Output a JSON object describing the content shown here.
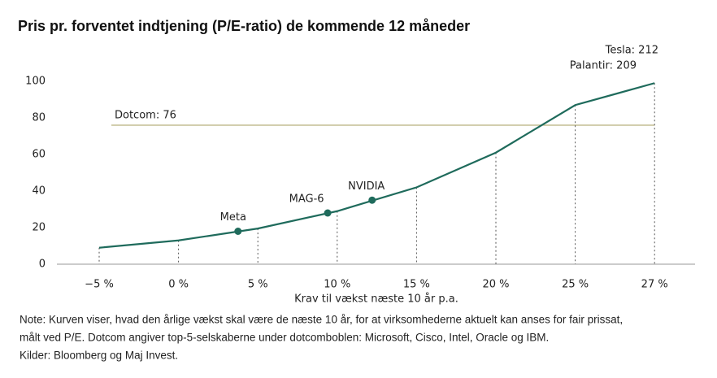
{
  "chart_data": {
    "type": "line",
    "title": "Pris pr. forventet indtjening (P/E-ratio) de kommende 12 måneder",
    "x_label": "Krav til vækst næste 10 år p.a.",
    "x": [
      -5,
      0,
      5,
      10,
      15,
      20,
      25,
      27
    ],
    "xticks": [
      {
        "value": -5,
        "label": "−5 %"
      },
      {
        "value": 0,
        "label": "0 %"
      },
      {
        "value": 5,
        "label": "5 %"
      },
      {
        "value": 10,
        "label": "10 %"
      },
      {
        "value": 15,
        "label": "15 %"
      },
      {
        "value": 20,
        "label": "20 %"
      },
      {
        "value": 25,
        "label": "25 %"
      },
      {
        "value": 27,
        "label": "27 %"
      }
    ],
    "series": [
      {
        "color": "#1f6b5c",
        "values": [
          9,
          13,
          19.5,
          29,
          42,
          61,
          87,
          99
        ]
      }
    ],
    "points": [
      {
        "label": "Meta",
        "x": 3.75,
        "y": 18
      },
      {
        "label": "MAG-6",
        "x": 9.4,
        "y": 28
      },
      {
        "label": "NVIDIA",
        "x": 12.2,
        "y": 35
      }
    ],
    "reference": {
      "label": "Dotcom: 76",
      "value": 76,
      "color": "#b8b07e"
    },
    "end_labels": [
      "Tesla: 212",
      "Palantir: 209"
    ],
    "ylim": [
      0,
      100
    ],
    "yticks": [
      0,
      20,
      40,
      60,
      80,
      100
    ],
    "notes": [
      "Note: Kurven viser, hvad den årlige vækst skal være de næste 10 år, for at virksomhederne aktuelt kan anses for fair prissat,",
      "målt ved P/E. Dotcom angiver top-5-selskaberne under dotcomboblen: Microsoft, Cisco, Intel, Oracle og IBM.",
      "Kilder: Bloomberg og Maj Invest."
    ]
  }
}
